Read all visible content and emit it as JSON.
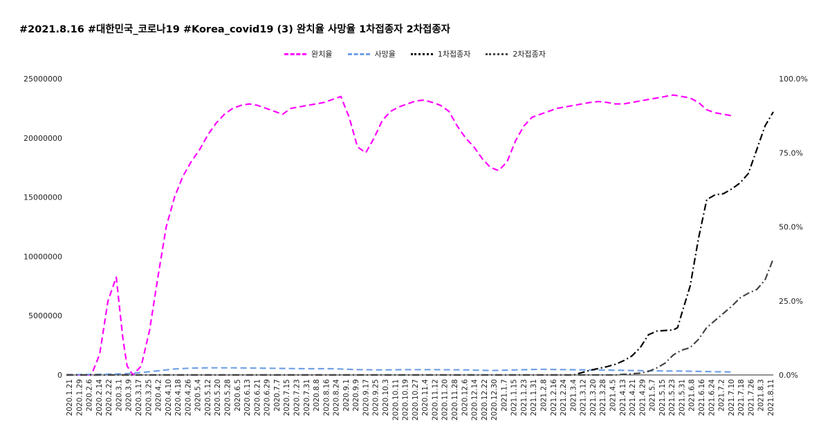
{
  "title": "#2021.8.16 #대한민국_코로나19 #Korea_covid19 (3) 완치율 사망율 1차접종자 2차접종자",
  "chart_data": {
    "type": "line",
    "title": "#2021.8.16 #대한민국_코로나19 #Korea_covid19 (3) 완치율 사망율 1차접종자 2차접종자",
    "legend_position": "top",
    "x_tick_labels": [
      "2020.1.21",
      "2020.1.29",
      "2020.2.6",
      "2020.2.14",
      "2020.2.22",
      "2020.3.1",
      "2020.3.9",
      "2020.3.17",
      "2020.3.25",
      "2020.4.2",
      "2020.4.10",
      "2020.4.18",
      "2020.4.26",
      "2020.5.4",
      "2020.5.12",
      "2020.5.20",
      "2020.5.28",
      "2020.6.5",
      "2020.6.13",
      "2020.6.21",
      "2020.6.29",
      "2020.7.7",
      "2020.7.15",
      "2020.7.23",
      "2020.7.31",
      "2020.8.8",
      "2020.8.16",
      "2020.8.24",
      "2020.9.1",
      "2020.9.9",
      "2020.9.17",
      "2020.9.25",
      "2020.10.3",
      "2020.10.11",
      "2020.10.19",
      "2020.10.27",
      "2020.11.4",
      "2020.11.12",
      "2020.11.20",
      "2020.11.28",
      "2020.12.6",
      "2020.12.14",
      "2020.12.22",
      "2020.12.30",
      "2021.1.7",
      "2021.1.15",
      "2021.1.23",
      "2021.1.31",
      "2021.2.8",
      "2021.2.16",
      "2021.2.24",
      "2021.3.4",
      "2021.3.12",
      "2021.3.20",
      "2021.3.28",
      "2021.4.5",
      "2021.4.13",
      "2021.4.21",
      "2021.4.29",
      "2021.5.7",
      "2021.5.15",
      "2021.5.23",
      "2021.5.31",
      "2021.6.8",
      "2021.6.16",
      "2021.6.24",
      "2021.7.2",
      "2021.7.10",
      "2021.7.18",
      "2021.7.26",
      "2021.8.3",
      "2021.8.11"
    ],
    "y_left": {
      "ticks": [
        "0",
        "5000000",
        "10000000",
        "15000000",
        "20000000",
        "25000000"
      ],
      "min": 0,
      "max": 25000000
    },
    "y_right": {
      "ticks": [
        "0.0%",
        "25.0%",
        "50.0%",
        "75.0%",
        "100.0%"
      ],
      "min": 0,
      "max": 100
    },
    "grid": false,
    "series": [
      {
        "name": "완치율",
        "axis": "right",
        "color": "#ff00ff",
        "dash": "dashed",
        "points": [
          [
            0,
            0
          ],
          [
            3,
            0
          ],
          [
            4,
            7
          ],
          [
            5,
            25
          ],
          [
            6,
            33
          ],
          [
            6.8,
            12
          ],
          [
            7.3,
            3
          ],
          [
            8,
            0
          ],
          [
            9,
            3
          ],
          [
            10,
            15
          ],
          [
            11,
            33
          ],
          [
            12,
            50
          ],
          [
            13,
            60
          ],
          [
            14,
            67
          ],
          [
            15,
            72
          ],
          [
            16,
            76
          ],
          [
            17,
            81
          ],
          [
            18,
            85
          ],
          [
            19,
            88
          ],
          [
            20,
            90
          ],
          [
            21,
            91
          ],
          [
            22,
            91.5
          ],
          [
            23,
            91
          ],
          [
            24,
            90
          ],
          [
            25,
            89
          ],
          [
            26,
            88
          ],
          [
            27,
            90
          ],
          [
            28,
            90.5
          ],
          [
            29,
            91
          ],
          [
            30,
            91.5
          ],
          [
            31,
            92
          ],
          [
            32,
            93
          ],
          [
            33,
            94
          ],
          [
            34,
            87
          ],
          [
            35,
            77
          ],
          [
            36,
            75
          ],
          [
            37,
            80
          ],
          [
            38,
            86
          ],
          [
            39,
            89
          ],
          [
            40,
            90.5
          ],
          [
            41,
            91.5
          ],
          [
            42,
            92.5
          ],
          [
            43,
            92.8
          ],
          [
            44,
            92
          ],
          [
            45,
            91
          ],
          [
            46,
            89
          ],
          [
            47,
            84
          ],
          [
            48,
            80
          ],
          [
            49,
            77
          ],
          [
            50,
            73
          ],
          [
            51,
            70
          ],
          [
            52,
            69
          ],
          [
            53,
            72
          ],
          [
            54,
            79
          ],
          [
            55,
            84
          ],
          [
            56,
            87
          ],
          [
            57,
            88
          ],
          [
            58,
            89
          ],
          [
            59,
            90
          ],
          [
            60,
            90.5
          ],
          [
            61,
            91
          ],
          [
            62,
            91.5
          ],
          [
            63,
            92
          ],
          [
            64,
            92.3
          ],
          [
            65,
            92
          ],
          [
            66,
            91.5
          ],
          [
            67,
            91.5
          ],
          [
            68,
            92
          ],
          [
            69,
            92.5
          ],
          [
            70,
            93
          ],
          [
            71,
            93.5
          ],
          [
            72,
            94
          ],
          [
            73,
            94.5
          ],
          [
            74,
            94
          ],
          [
            75,
            93.5
          ],
          [
            76,
            92
          ],
          [
            77,
            89.5
          ],
          [
            78,
            88.5
          ],
          [
            79,
            88
          ],
          [
            80,
            87.5
          ]
        ]
      },
      {
        "name": "사망율",
        "axis": "right",
        "color": "#6fa0e6",
        "dash": "dashed",
        "points": [
          [
            0,
            0.1
          ],
          [
            4,
            0.2
          ],
          [
            7,
            0.4
          ],
          [
            9,
            0.8
          ],
          [
            11,
            1.4
          ],
          [
            13,
            2.0
          ],
          [
            15,
            2.3
          ],
          [
            17,
            2.4
          ],
          [
            20,
            2.4
          ],
          [
            23,
            2.3
          ],
          [
            26,
            2.2
          ],
          [
            29,
            2.1
          ],
          [
            32,
            2.1
          ],
          [
            35,
            1.8
          ],
          [
            38,
            1.7
          ],
          [
            41,
            1.8
          ],
          [
            44,
            1.8
          ],
          [
            48,
            1.7
          ],
          [
            51,
            1.5
          ],
          [
            54,
            1.7
          ],
          [
            57,
            1.9
          ],
          [
            60,
            1.8
          ],
          [
            63,
            1.7
          ],
          [
            66,
            1.6
          ],
          [
            70,
            1.4
          ],
          [
            74,
            1.3
          ],
          [
            78,
            1.1
          ],
          [
            80,
            1.0
          ]
        ]
      },
      {
        "name": "1차접종자",
        "axis": "left",
        "color": "#000000",
        "dash": "dashdot",
        "points": [
          [
            0,
            0
          ],
          [
            61,
            0
          ],
          [
            62,
            200000
          ],
          [
            63,
            400000
          ],
          [
            64,
            550000
          ],
          [
            65,
            700000
          ],
          [
            66,
            900000
          ],
          [
            67,
            1200000
          ],
          [
            68,
            1600000
          ],
          [
            69,
            2300000
          ],
          [
            70,
            3400000
          ],
          [
            71,
            3700000
          ],
          [
            72,
            3750000
          ],
          [
            73,
            3800000
          ],
          [
            73.5,
            4000000
          ],
          [
            74,
            5200000
          ],
          [
            75,
            7500000
          ],
          [
            76,
            11500000
          ],
          [
            77,
            14800000
          ],
          [
            78,
            15200000
          ],
          [
            79,
            15300000
          ],
          [
            80,
            15700000
          ],
          [
            81,
            16200000
          ],
          [
            82,
            17000000
          ],
          [
            83,
            19000000
          ],
          [
            84,
            21000000
          ],
          [
            85,
            22200000
          ]
        ]
      },
      {
        "name": "2차접종자",
        "axis": "left",
        "color": "#444444",
        "dash": "dashdot",
        "points": [
          [
            0,
            0
          ],
          [
            66,
            0
          ],
          [
            67,
            50000
          ],
          [
            68,
            100000
          ],
          [
            69,
            150000
          ],
          [
            70,
            300000
          ],
          [
            71,
            600000
          ],
          [
            72,
            1000000
          ],
          [
            73,
            1700000
          ],
          [
            74,
            2100000
          ],
          [
            75,
            2300000
          ],
          [
            76,
            3000000
          ],
          [
            77,
            4000000
          ],
          [
            78,
            4600000
          ],
          [
            79,
            5200000
          ],
          [
            80,
            5800000
          ],
          [
            81,
            6500000
          ],
          [
            82,
            6900000
          ],
          [
            83,
            7200000
          ],
          [
            84,
            8000000
          ],
          [
            85,
            9800000
          ]
        ]
      }
    ]
  }
}
